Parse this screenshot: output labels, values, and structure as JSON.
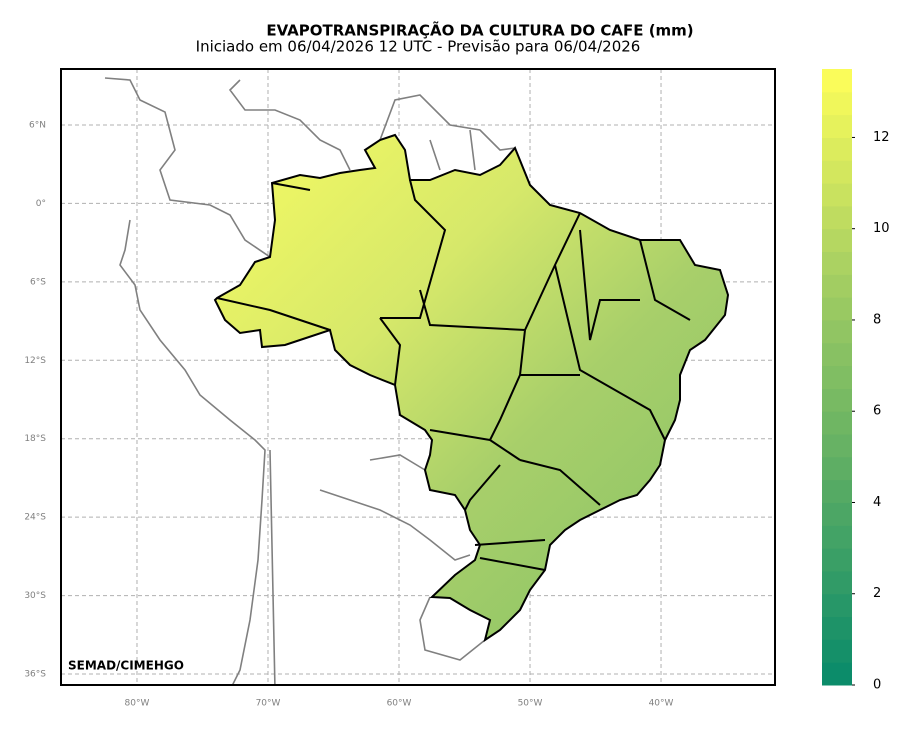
{
  "title": "EVAPOTRANSPIRAÇÃO DA CULTURA DO CAFE (mm)",
  "subtitle": "Iniciado em 06/04/2026 12 UTC - Previsão para 06/04/2026",
  "credit": "SEMAD/CIMEHGO",
  "map": {
    "lonlim": [
      -85.8,
      -31.3
    ],
    "latlim": [
      -36.84,
      10.28
    ],
    "lon_ticks": [
      {
        "value": -80,
        "label": "80°W"
      },
      {
        "value": -70,
        "label": "70°W"
      },
      {
        "value": -60,
        "label": "60°W"
      },
      {
        "value": -50,
        "label": "50°W"
      },
      {
        "value": -40,
        "label": "40°W"
      }
    ],
    "lat_ticks": [
      {
        "value": 6,
        "label": "6°N"
      },
      {
        "value": 0,
        "label": "0°"
      },
      {
        "value": -6,
        "label": "6°S"
      },
      {
        "value": -12,
        "label": "12°S"
      },
      {
        "value": -18,
        "label": "18°S"
      },
      {
        "value": -24,
        "label": "24°S"
      },
      {
        "value": -30,
        "label": "30°S"
      },
      {
        "value": -36,
        "label": "36°S"
      }
    ],
    "grid": true
  },
  "colorbar": {
    "lim": [
      0,
      13.5
    ],
    "ticks": [
      0,
      2,
      4,
      6,
      8,
      10,
      12
    ],
    "colors": [
      "#078a6a",
      "#5aac64",
      "#a6cf62",
      "#ffff5a"
    ]
  }
}
